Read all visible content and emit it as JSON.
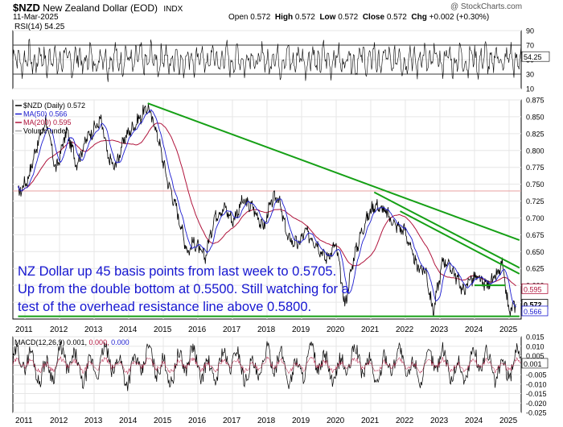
{
  "header": {
    "symbol": "$NZD",
    "name": "New Zealand Dollar (EOD)",
    "exchange": "INDX",
    "date": "11-Mar-2025",
    "open_label": "Open",
    "open": "0.572",
    "high_label": "High",
    "high": "0.572",
    "low_label": "Low",
    "low": "0.572",
    "close_label": "Close",
    "close": "0.572",
    "chg_label": "Chg",
    "chg": "+0.002 (+0.30%)",
    "watermark": "@ StockCharts.com"
  },
  "annotation": [
    "NZ Dollar up 45 basis points from last week to 0.5705.",
    "Up from the double bottom at 0.5500. Still watching for a",
    "test of the overhead resistance line above 0.5800."
  ],
  "colors": {
    "price": "#000000",
    "ma50": "#1b1bd0",
    "ma200": "#b0143c",
    "trendline": "#16a016",
    "annotation": "#1515d0",
    "grid": "#e6e6e6",
    "reference_line": "#e8a0a0"
  },
  "chart_data": [
    {
      "type": "line",
      "panel": "rsi",
      "legend": "RSI(14) 54.25",
      "ylim": [
        10,
        90
      ],
      "ticks": [
        "90",
        "70",
        "50",
        "30",
        "10"
      ],
      "last_label": "54.25",
      "reference_levels": [
        70,
        30
      ],
      "note": "oscillating series"
    },
    {
      "type": "line",
      "panel": "price",
      "legend": [
        {
          "name": "$NZD (Daily) 0.572",
          "color": "#000000"
        },
        {
          "name": "MA(50) 0.566",
          "color": "#1b1bd0"
        },
        {
          "name": "MA(200) 0.595",
          "color": "#b0143c"
        },
        {
          "name": "Volume undef",
          "color": "#aaaaaa"
        }
      ],
      "ylim": [
        0.55,
        0.875
      ],
      "yticks": [
        "0.875",
        "0.850",
        "0.825",
        "0.800",
        "0.775",
        "0.750",
        "0.725",
        "0.700",
        "0.675",
        "0.650",
        "0.625",
        "0.600",
        "0.575"
      ],
      "xticks": [
        "2011",
        "2012",
        "2013",
        "2014",
        "2015",
        "2016",
        "2017",
        "2018",
        "2019",
        "2020",
        "2021",
        "2022",
        "2023",
        "2024",
        "2025"
      ],
      "series_points": {
        "x": [
          2010.8,
          2011.1,
          2011.3,
          2011.6,
          2011.9,
          2012.2,
          2012.5,
          2012.8,
          2013.2,
          2013.4,
          2013.6,
          2013.9,
          2014.2,
          2014.55,
          2014.8,
          2015.1,
          2015.4,
          2015.7,
          2015.9,
          2016.2,
          2016.5,
          2016.8,
          2017.0,
          2017.3,
          2017.6,
          2017.9,
          2018.1,
          2018.3,
          2018.6,
          2018.9,
          2019.1,
          2019.4,
          2019.7,
          2020.0,
          2020.25,
          2020.5,
          2020.8,
          2021.1,
          2021.4,
          2021.7,
          2022.0,
          2022.3,
          2022.6,
          2022.8,
          2023.1,
          2023.4,
          2023.7,
          2023.85,
          2024.1,
          2024.3,
          2024.6,
          2024.8,
          2025.0,
          2025.2
        ],
        "close": [
          0.735,
          0.76,
          0.8,
          0.845,
          0.77,
          0.83,
          0.78,
          0.82,
          0.845,
          0.79,
          0.775,
          0.82,
          0.84,
          0.865,
          0.83,
          0.76,
          0.71,
          0.65,
          0.665,
          0.64,
          0.705,
          0.715,
          0.695,
          0.725,
          0.715,
          0.685,
          0.72,
          0.735,
          0.67,
          0.66,
          0.68,
          0.665,
          0.64,
          0.66,
          0.57,
          0.64,
          0.69,
          0.72,
          0.71,
          0.69,
          0.68,
          0.63,
          0.62,
          0.56,
          0.64,
          0.62,
          0.59,
          0.61,
          0.61,
          0.6,
          0.61,
          0.63,
          0.56,
          0.572
        ],
        "last_label": "0.572",
        "ma200_label": "0.595",
        "ma50_label": "0.566"
      },
      "reference_line": 0.74,
      "trendlines": [
        {
          "from": [
            2014.55,
            0.87
          ],
          "to": [
            2025.3,
            0.667
          ]
        },
        {
          "from": [
            2021.1,
            0.738
          ],
          "to": [
            2025.3,
            0.626
          ]
        },
        {
          "from": [
            2021.85,
            0.71
          ],
          "to": [
            2025.3,
            0.617
          ]
        },
        {
          "from": [
            2024.0,
            0.6
          ],
          "to": [
            2024.9,
            0.6
          ]
        },
        {
          "from": [
            2010.8,
            0.554
          ],
          "to": [
            2025.3,
            0.554
          ]
        }
      ]
    },
    {
      "type": "line",
      "panel": "macd",
      "legend": [
        "MACD(12,26,9) 0.001,",
        "0.000,",
        "0.000"
      ],
      "ylim": [
        -0.025,
        0.015
      ],
      "yticks": [
        "0.015",
        "0.010",
        "0.005",
        "0.000",
        "-0.005",
        "-0.010",
        "-0.015",
        "-0.020",
        "-0.025"
      ],
      "last_label": "0.001",
      "xticks": [
        "2011",
        "2012",
        "2013",
        "2014",
        "2015",
        "2016",
        "2017",
        "2018",
        "2019",
        "2020",
        "2021",
        "2022",
        "2023",
        "2024",
        "2025"
      ]
    }
  ]
}
